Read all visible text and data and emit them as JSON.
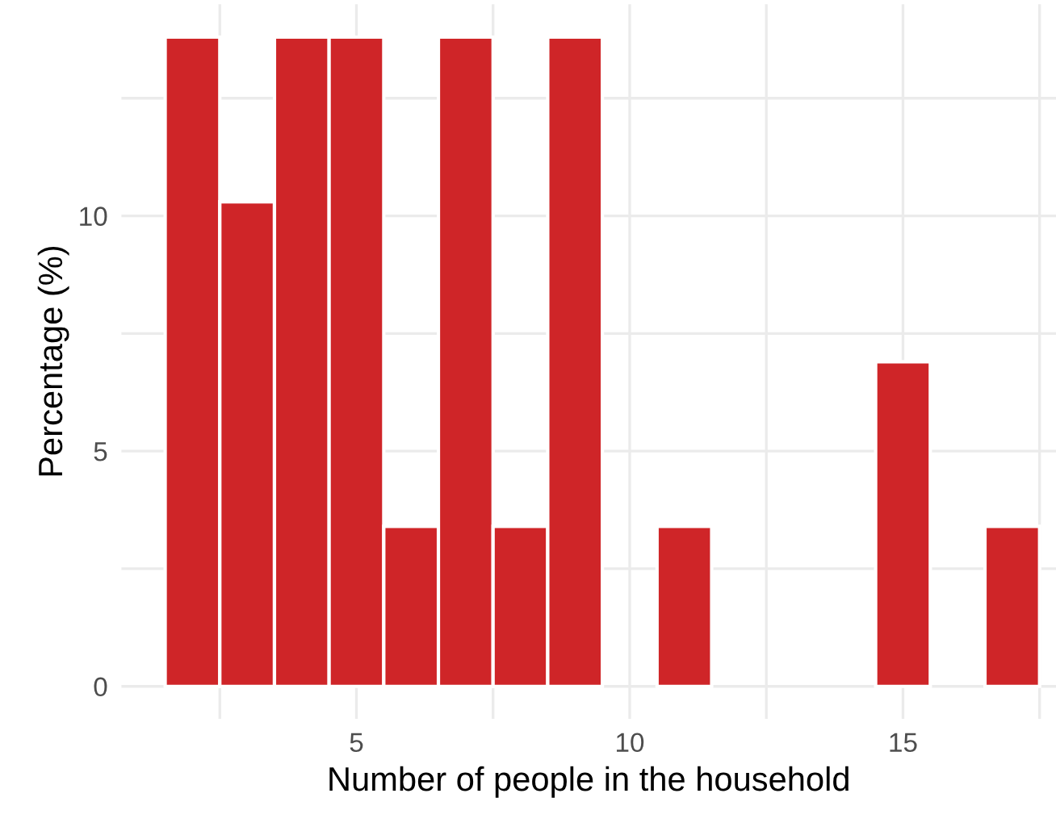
{
  "chart_data": {
    "type": "bar",
    "xlabel": "Number of people in the household",
    "ylabel": "Percentage (%)",
    "x": [
      2,
      3,
      4,
      5,
      6,
      7,
      8,
      9,
      11,
      15,
      17
    ],
    "values": [
      13.8,
      10.3,
      13.8,
      13.8,
      3.4,
      13.8,
      3.4,
      13.8,
      3.4,
      6.9,
      3.4
    ],
    "color": "#cf2528",
    "xlim": [
      0.7,
      17.8
    ],
    "ylim": [
      -0.69,
      14.5
    ],
    "xticks": [
      {
        "value": 2.5,
        "label": null
      },
      5,
      {
        "value": 7.5,
        "label": null
      },
      10,
      {
        "value": 12.5,
        "label": null
      },
      15,
      {
        "value": 17.5,
        "label": null
      }
    ],
    "yticks": [
      0,
      {
        "value": 2.5,
        "label": null
      },
      5,
      {
        "value": 7.5,
        "label": null
      },
      10,
      {
        "value": 12.5,
        "label": null
      }
    ],
    "grid": true
  }
}
